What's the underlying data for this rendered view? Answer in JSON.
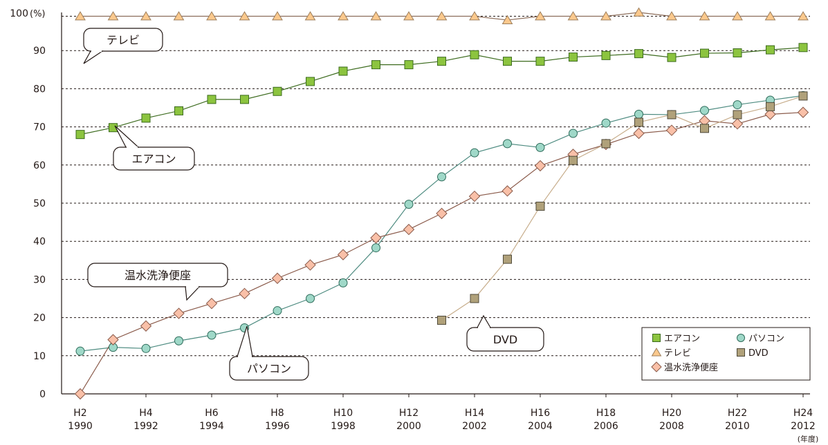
{
  "chart_data": {
    "type": "line",
    "title": "",
    "xlabel": "",
    "ylabel": "",
    "y_top_label": "100",
    "y_unit_label": "(%)",
    "x_unit_label": "(年度)",
    "ylim": [
      0,
      100
    ],
    "yticks": [
      0,
      10,
      20,
      30,
      40,
      50,
      60,
      70,
      80,
      90
    ],
    "grid": "horizontal-dashed",
    "legend_position": "bottom-right",
    "x": [
      1990,
      1991,
      1992,
      1993,
      1994,
      1995,
      1996,
      1997,
      1998,
      1999,
      2000,
      2001,
      2002,
      2003,
      2004,
      2005,
      2006,
      2007,
      2008,
      2009,
      2010,
      2011,
      2012
    ],
    "x_tick_labels": [
      {
        "era": "H2",
        "year": "1990"
      },
      {
        "era": "H4",
        "year": "1992"
      },
      {
        "era": "H6",
        "year": "1994"
      },
      {
        "era": "H8",
        "year": "1996"
      },
      {
        "era": "H10",
        "year": "1998"
      },
      {
        "era": "H12",
        "year": "2000"
      },
      {
        "era": "H14",
        "year": "2002"
      },
      {
        "era": "H16",
        "year": "2004"
      },
      {
        "era": "H18",
        "year": "2006"
      },
      {
        "era": "H20",
        "year": "2008"
      },
      {
        "era": "H22",
        "year": "2010"
      },
      {
        "era": "H24",
        "year": "2012"
      }
    ],
    "series": [
      {
        "name": "テレビ",
        "marker": "triangle",
        "fill": "#fbc98d",
        "stroke": "#9c7e5c",
        "line": "#8c6d5a",
        "values": [
          99,
          99,
          99,
          99,
          99,
          99,
          99,
          99,
          99,
          99,
          99,
          99,
          99,
          98,
          99,
          99,
          99,
          100,
          99,
          99,
          99,
          99,
          99
        ]
      },
      {
        "name": "エアコン",
        "marker": "square",
        "fill": "#8cc43f",
        "stroke": "#3c6b1e",
        "line": "#3c6b1e",
        "values": [
          68,
          69.8,
          72.3,
          74.2,
          77.2,
          77.2,
          79.3,
          81.9,
          84.6,
          86.3,
          86.3,
          87.2,
          88.9,
          87.2,
          87.2,
          88.3,
          88.7,
          89.2,
          88.2,
          89.3,
          89.4,
          90.2,
          90.8
        ]
      },
      {
        "name": "パソコン",
        "marker": "circle",
        "fill": "#9fd8c8",
        "stroke": "#2e6b5a",
        "line": "#4d8b80",
        "values": [
          11.2,
          12.2,
          11.9,
          13.9,
          15.4,
          17.3,
          21.8,
          25,
          29.1,
          38.3,
          49.7,
          56.9,
          63.2,
          65.6,
          64.6,
          68.3,
          71,
          73.3,
          73.2,
          74.3,
          75.8,
          77,
          78.2
        ]
      },
      {
        "name": "温水洗浄便座",
        "marker": "diamond",
        "fill": "#f9c0a8",
        "stroke": "#8a5a4a",
        "line": "#8a5a4a",
        "values": [
          0,
          14.2,
          17.8,
          21.1,
          23.7,
          26.3,
          30.3,
          33.8,
          36.5,
          40.9,
          43.1,
          47.3,
          51.8,
          53.2,
          59.8,
          62.8,
          65.4,
          68.3,
          69.1,
          71.6,
          70.8,
          73.3,
          73.8
        ]
      },
      {
        "name": "DVD",
        "marker": "square",
        "fill": "#b0a17a",
        "stroke": "#4f4a3a",
        "line": "#c7ad8b",
        "values": [
          null,
          null,
          null,
          null,
          null,
          null,
          null,
          null,
          null,
          null,
          null,
          19.3,
          25,
          35.3,
          49.2,
          61.2,
          65.6,
          71.2,
          73.2,
          69.6,
          73.2,
          75.3,
          78.1
        ]
      }
    ],
    "callouts": [
      {
        "series": "テレビ",
        "text": "テレビ"
      },
      {
        "series": "エアコン",
        "text": "エアコン"
      },
      {
        "series": "温水洗浄便座",
        "text": "温水洗浄便座"
      },
      {
        "series": "パソコン",
        "text": "パソコン"
      },
      {
        "series": "DVD",
        "text": "DVD"
      }
    ],
    "legend": [
      {
        "label": "エアコン",
        "marker": "square",
        "fill": "#8cc43f",
        "stroke": "#3c6b1e"
      },
      {
        "label": "パソコン",
        "marker": "circle",
        "fill": "#9fd8c8",
        "stroke": "#2e6b5a"
      },
      {
        "label": "テレビ",
        "marker": "triangle",
        "fill": "#fbc98d",
        "stroke": "#9c7e5c"
      },
      {
        "label": "DVD",
        "marker": "square",
        "fill": "#b0a17a",
        "stroke": "#4f4a3a"
      },
      {
        "label": "温水洗浄便座",
        "marker": "diamond",
        "fill": "#f9c0a8",
        "stroke": "#8a5a4a"
      }
    ]
  }
}
